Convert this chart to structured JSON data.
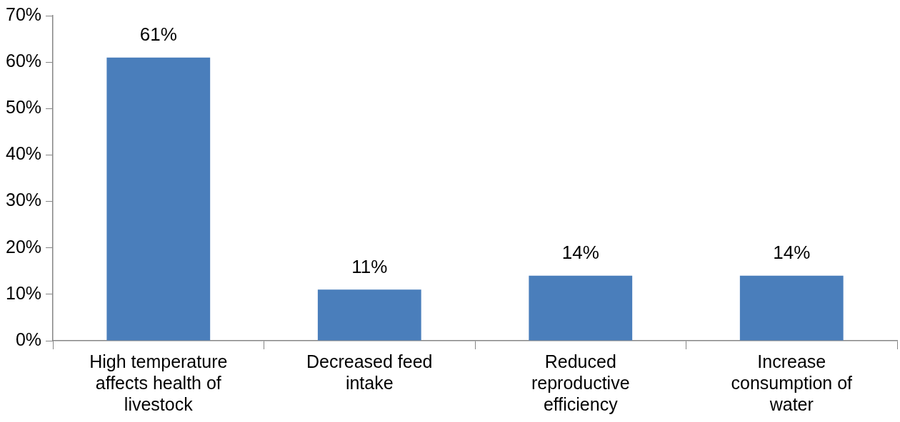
{
  "chart_data": {
    "type": "bar",
    "categories": [
      "High temperature affects health of livestock",
      "Decreased feed intake",
      "Reduced reproductive efficiency",
      "Increase consumption of water"
    ],
    "values": [
      61,
      11,
      14,
      14
    ],
    "color": "#4a7ebb",
    "value_labels": [
      "61%",
      "11%",
      "14%",
      "14%"
    ],
    "ylim": [
      0,
      70
    ],
    "yticks": [
      {
        "value": 0,
        "label": "0%"
      },
      {
        "value": 10,
        "label": "10%"
      },
      {
        "value": 20,
        "label": "20%"
      },
      {
        "value": 30,
        "label": "30%"
      },
      {
        "value": 40,
        "label": "40%"
      },
      {
        "value": 50,
        "label": "50%"
      },
      {
        "value": 60,
        "label": "60%"
      },
      {
        "value": 70,
        "label": "70%"
      }
    ],
    "grid": false,
    "legend": false
  }
}
